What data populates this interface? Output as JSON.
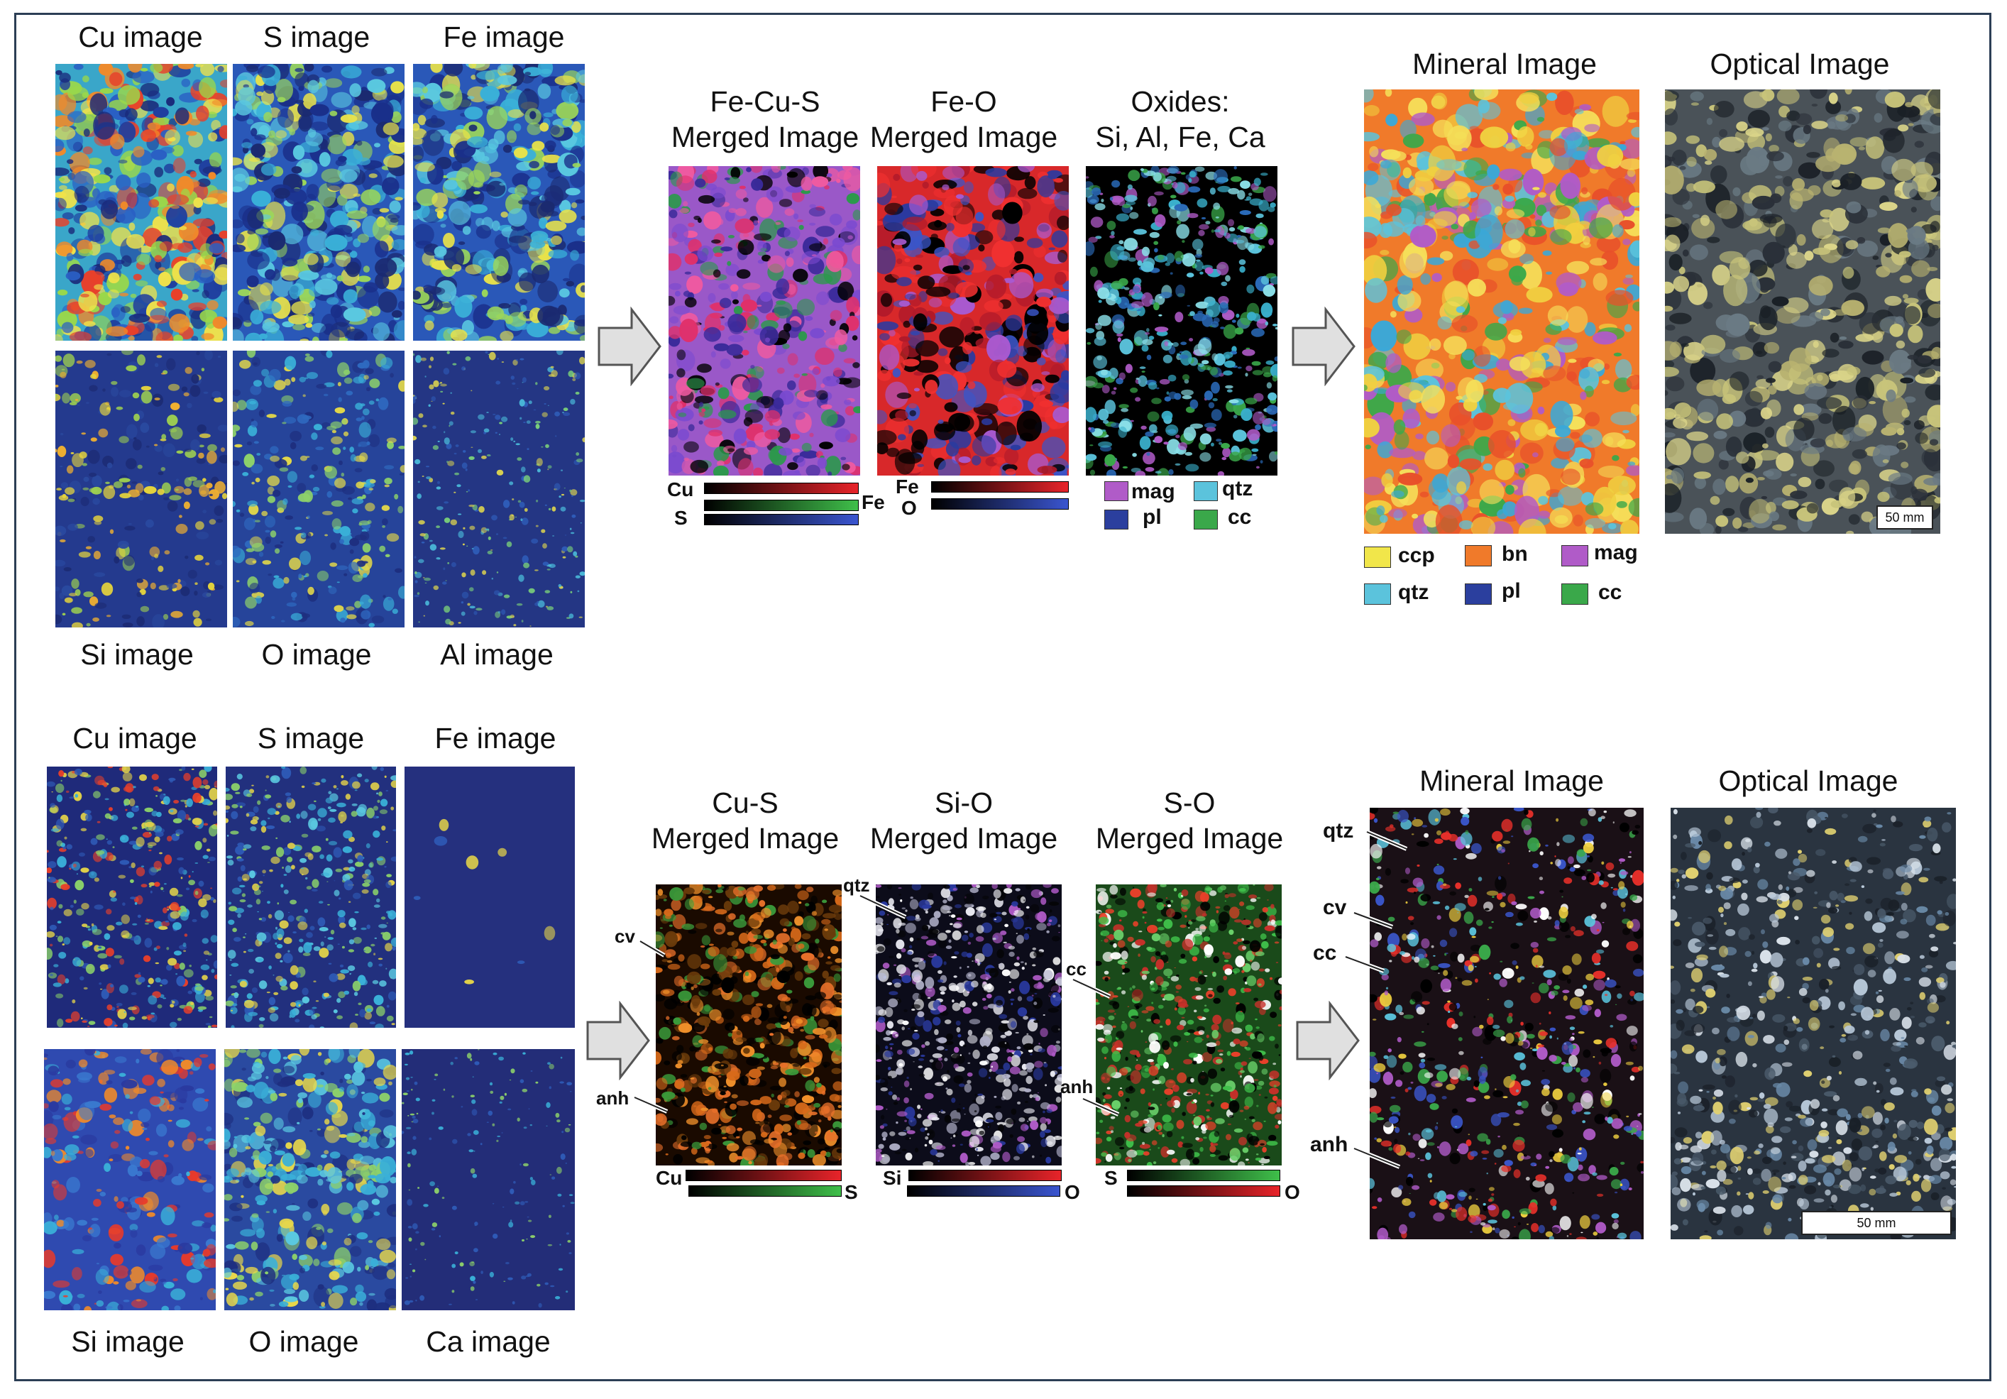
{
  "figure": {
    "top": {
      "element_labels_top": [
        "Cu image",
        "S image",
        "Fe image"
      ],
      "element_labels_bottom": [
        "Si image",
        "O image",
        "Al image"
      ],
      "merged_titles": [
        {
          "line1": "Fe-Cu-S",
          "line2": "Merged Image"
        },
        {
          "line1": "Fe-O",
          "line2": "Merged Image"
        },
        {
          "line1": "Oxides:",
          "line2": "Si, Al, Fe, Ca"
        }
      ],
      "bar_labels_1": {
        "a": "Cu",
        "b": "S",
        "c": "Fe"
      },
      "bar_labels_2": {
        "a": "Fe",
        "b": "O"
      },
      "oxide_legend": [
        {
          "label": "mag",
          "color": "#b05bc8"
        },
        {
          "label": "qtz",
          "color": "#5bc3dc"
        },
        {
          "label": "pl",
          "color": "#2b3f9e"
        },
        {
          "label": "cc",
          "color": "#3aa84a"
        }
      ],
      "mineral_title": "Mineral Image",
      "optical_title": "Optical Image",
      "scale_label": "50 mm",
      "mineral_legend": [
        {
          "label": "ccp",
          "color": "#f1e64a"
        },
        {
          "label": "bn",
          "color": "#f07a2a"
        },
        {
          "label": "mag",
          "color": "#b05bc8"
        },
        {
          "label": "qtz",
          "color": "#5bc3dc"
        },
        {
          "label": "pl",
          "color": "#2b3f9e"
        },
        {
          "label": "cc",
          "color": "#3aa84a"
        }
      ]
    },
    "bottom": {
      "element_labels_top": [
        "Cu image",
        "S image",
        "Fe image"
      ],
      "element_labels_bottom": [
        "Si image",
        "O image",
        "Ca image"
      ],
      "merged_titles": [
        {
          "line1": "Cu-S",
          "line2": "Merged Image"
        },
        {
          "line1": "Si-O",
          "line2": "Merged Image"
        },
        {
          "line1": "S-O",
          "line2": "Merged Image"
        }
      ],
      "bar_labels_1": {
        "a": "Cu",
        "b": "S"
      },
      "bar_labels_2": {
        "a": "Si",
        "b": "O"
      },
      "bar_labels_3": {
        "a": "S",
        "b": "O"
      },
      "annotations_cus": [
        "cv",
        "anh"
      ],
      "annotations_sio": [
        "qtz"
      ],
      "annotations_so": [
        "cc",
        "anh"
      ],
      "annotations_mineral": [
        "qtz",
        "cv",
        "cc",
        "anh"
      ],
      "mineral_title": "Mineral Image",
      "optical_title": "Optical Image",
      "scale_label": "50 mm"
    }
  }
}
